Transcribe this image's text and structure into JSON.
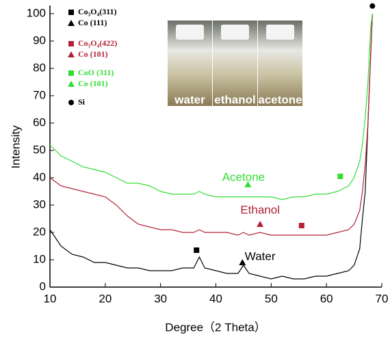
{
  "chart_data": {
    "type": "line",
    "x_label": "Degree（2 Theta）",
    "y_label": "Intensity",
    "xlim": [
      10,
      70
    ],
    "ylim": [
      0,
      103
    ],
    "xticks": [
      10,
      20,
      30,
      40,
      50,
      60,
      70
    ],
    "yticks": [
      0,
      10,
      20,
      30,
      40,
      50,
      60,
      70,
      80,
      90,
      100
    ],
    "x": [
      10,
      12,
      14,
      16,
      18,
      20,
      22,
      24,
      26,
      28,
      30,
      32,
      34,
      36,
      37,
      38,
      40,
      42,
      44,
      45,
      46,
      48,
      50,
      52,
      54,
      56,
      58,
      60,
      62,
      64,
      65,
      66,
      66.5,
      67,
      67.5,
      68,
      68.3
    ],
    "series": [
      {
        "name": "Water",
        "color": "#000000",
        "values": [
          21,
          15,
          12,
          11,
          9,
          9,
          8,
          7,
          7,
          6,
          6,
          6,
          7,
          7,
          11,
          7,
          6,
          5,
          5,
          8,
          5,
          4,
          3,
          4,
          3,
          3,
          4,
          4,
          5,
          6,
          8,
          14,
          25,
          35,
          60,
          85,
          100
        ]
      },
      {
        "name": "Ethanol",
        "color": "#b22234",
        "values": [
          40,
          37,
          36,
          35,
          34,
          33,
          30,
          26,
          23,
          22,
          21,
          21,
          20,
          20,
          21,
          20,
          20,
          20,
          19,
          20,
          19,
          20,
          19,
          19,
          19,
          19,
          19,
          19,
          20,
          21,
          23,
          28,
          35,
          45,
          60,
          85,
          100
        ]
      },
      {
        "name": "Acetone",
        "color": "#33dd33",
        "values": [
          52,
          48,
          46,
          44,
          43,
          42,
          40,
          38,
          38,
          37,
          35,
          34,
          34,
          34,
          35,
          34,
          33,
          33,
          33,
          33,
          33,
          33,
          33,
          32,
          33,
          33,
          34,
          34,
          35,
          37,
          40,
          46,
          52,
          62,
          75,
          95,
          100
        ]
      }
    ],
    "peak_markers": [
      {
        "shape": "square",
        "color": "#000000",
        "x": 36.5,
        "y": 13.5
      },
      {
        "shape": "triangle",
        "color": "#000000",
        "x": 44.8,
        "y": 9
      },
      {
        "shape": "triangle",
        "color": "#b22234",
        "x": 48,
        "y": 23
      },
      {
        "shape": "square",
        "color": "#b22234",
        "x": 55.5,
        "y": 22.5
      },
      {
        "shape": "triangle",
        "color": "#33dd33",
        "x": 45.8,
        "y": 37.5
      },
      {
        "shape": "square",
        "color": "#33dd33",
        "x": 62.5,
        "y": 40.5
      },
      {
        "shape": "circle",
        "color": "#000000",
        "x": 68.3,
        "y": 102.8
      }
    ],
    "legend": [
      {
        "label": "Co₃O₄(311)",
        "shape": "square",
        "color": "#000000"
      },
      {
        "label": "Co (111)",
        "shape": "triangle",
        "color": "#000000"
      },
      {
        "label": "Co₃O₄(422)",
        "shape": "square",
        "color": "#b22234"
      },
      {
        "label": "Co (101)",
        "shape": "triangle",
        "color": "#b22234"
      },
      {
        "label": "CoO (311)",
        "shape": "square",
        "color": "#33dd33"
      },
      {
        "label": "Co (101)",
        "shape": "triangle",
        "color": "#33dd33"
      },
      {
        "label": "Si",
        "shape": "circle",
        "color": "#000000"
      }
    ],
    "inset_labels": [
      "water",
      "ethanol",
      "acetone"
    ]
  }
}
